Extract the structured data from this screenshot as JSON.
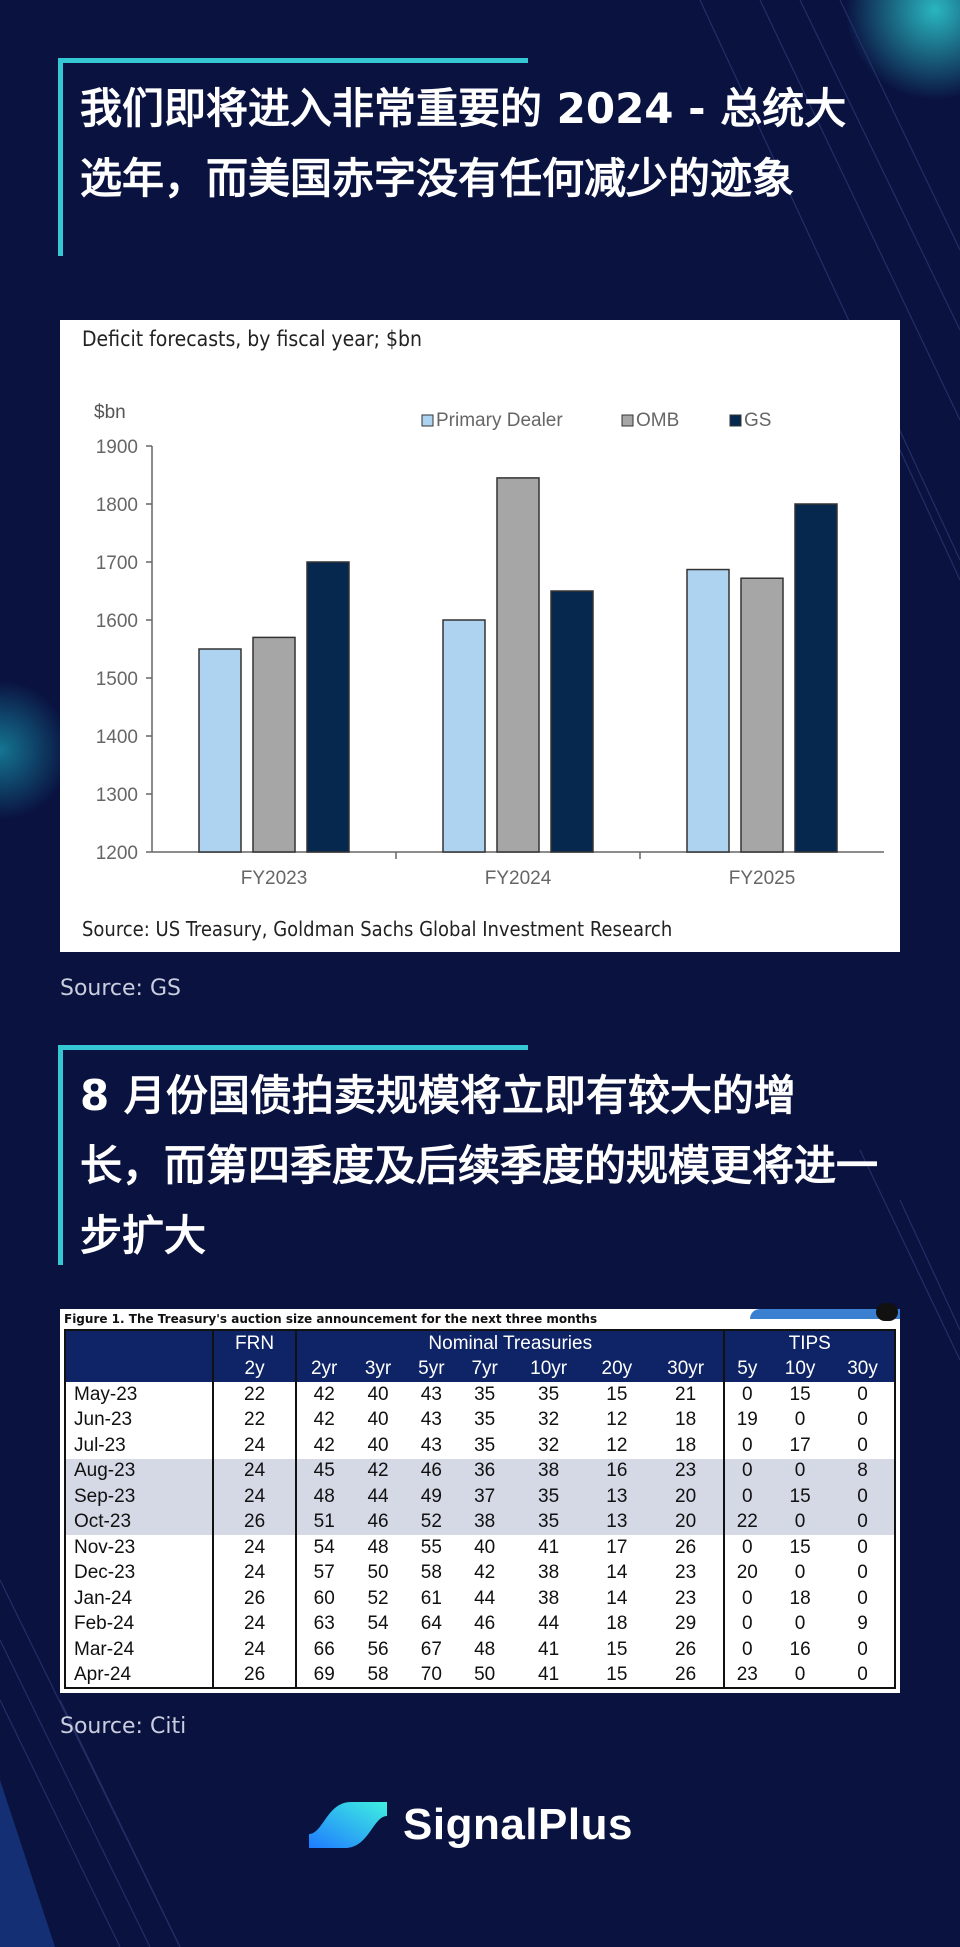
{
  "section1": {
    "title": "我们即将进入非常重要的 2024 - 总统大选年，而美国赤字没有任何减少的迹象",
    "source": "Source: GS"
  },
  "section2": {
    "title": "8 月份国债拍卖规模将立即有较大的增长，而第四季度及后续季度的规模更将进一步扩大",
    "source": "Source: Citi"
  },
  "chart_data": {
    "type": "bar",
    "title": "Deficit forecasts, by fiscal year; $bn",
    "ylabel": "$bn",
    "source": "Source: US Treasury, Goldman Sachs Global Investment Research",
    "categories": [
      "FY2023",
      "FY2024",
      "FY2025"
    ],
    "ylim": [
      1200,
      1900
    ],
    "yticks": [
      1200,
      1300,
      1400,
      1500,
      1600,
      1700,
      1800,
      1900
    ],
    "legend_position": "top-right",
    "grid": false,
    "series": [
      {
        "name": "Primary Dealer",
        "color": "#aed3f1",
        "values": [
          1550,
          1600,
          1687
        ]
      },
      {
        "name": "OMB",
        "color": "#a6a6a6",
        "values": [
          1570,
          1845,
          1672
        ]
      },
      {
        "name": "GS",
        "color": "#06284f",
        "values": [
          1700,
          1650,
          1800
        ]
      }
    ]
  },
  "table": {
    "caption": "Figure 1. The Treasury's auction size announcement for the next three months",
    "groups": [
      {
        "label": "FRN",
        "span": 1
      },
      {
        "label": "Nominal Treasuries",
        "span": 7
      },
      {
        "label": "TIPS",
        "span": 3
      }
    ],
    "columns": [
      "2y",
      "2yr",
      "3yr",
      "5yr",
      "7yr",
      "10yr",
      "20y",
      "30yr",
      "5y",
      "10y",
      "30y"
    ],
    "rows": [
      {
        "month": "May-23",
        "values": [
          22,
          42,
          40,
          43,
          35,
          35,
          15,
          21,
          0,
          15,
          0
        ],
        "shaded": false
      },
      {
        "month": "Jun-23",
        "values": [
          22,
          42,
          40,
          43,
          35,
          32,
          12,
          18,
          19,
          0,
          0
        ],
        "shaded": false
      },
      {
        "month": "Jul-23",
        "values": [
          24,
          42,
          40,
          43,
          35,
          32,
          12,
          18,
          0,
          17,
          0
        ],
        "shaded": false
      },
      {
        "month": "Aug-23",
        "values": [
          24,
          45,
          42,
          46,
          36,
          38,
          16,
          23,
          0,
          0,
          8
        ],
        "shaded": true
      },
      {
        "month": "Sep-23",
        "values": [
          24,
          48,
          44,
          49,
          37,
          35,
          13,
          20,
          0,
          15,
          0
        ],
        "shaded": true
      },
      {
        "month": "Oct-23",
        "values": [
          26,
          51,
          46,
          52,
          38,
          35,
          13,
          20,
          22,
          0,
          0
        ],
        "shaded": true
      },
      {
        "month": "Nov-23",
        "values": [
          24,
          54,
          48,
          55,
          40,
          41,
          17,
          26,
          0,
          15,
          0
        ],
        "shaded": false
      },
      {
        "month": "Dec-23",
        "values": [
          24,
          57,
          50,
          58,
          42,
          38,
          14,
          23,
          20,
          0,
          0
        ],
        "shaded": false
      },
      {
        "month": "Jan-24",
        "values": [
          26,
          60,
          52,
          61,
          44,
          38,
          14,
          23,
          0,
          18,
          0
        ],
        "shaded": false
      },
      {
        "month": "Feb-24",
        "values": [
          24,
          63,
          54,
          64,
          46,
          44,
          18,
          29,
          0,
          0,
          9
        ],
        "shaded": false
      },
      {
        "month": "Mar-24",
        "values": [
          24,
          66,
          56,
          67,
          48,
          41,
          15,
          26,
          0,
          16,
          0
        ],
        "shaded": false
      },
      {
        "month": "Apr-24",
        "values": [
          26,
          69,
          58,
          70,
          50,
          41,
          15,
          26,
          23,
          0,
          0
        ],
        "shaded": false
      }
    ]
  },
  "brand": {
    "name": "SignalPlus",
    "accent": "#35c7d4",
    "logo_icon": "signalplus-wave-icon"
  }
}
